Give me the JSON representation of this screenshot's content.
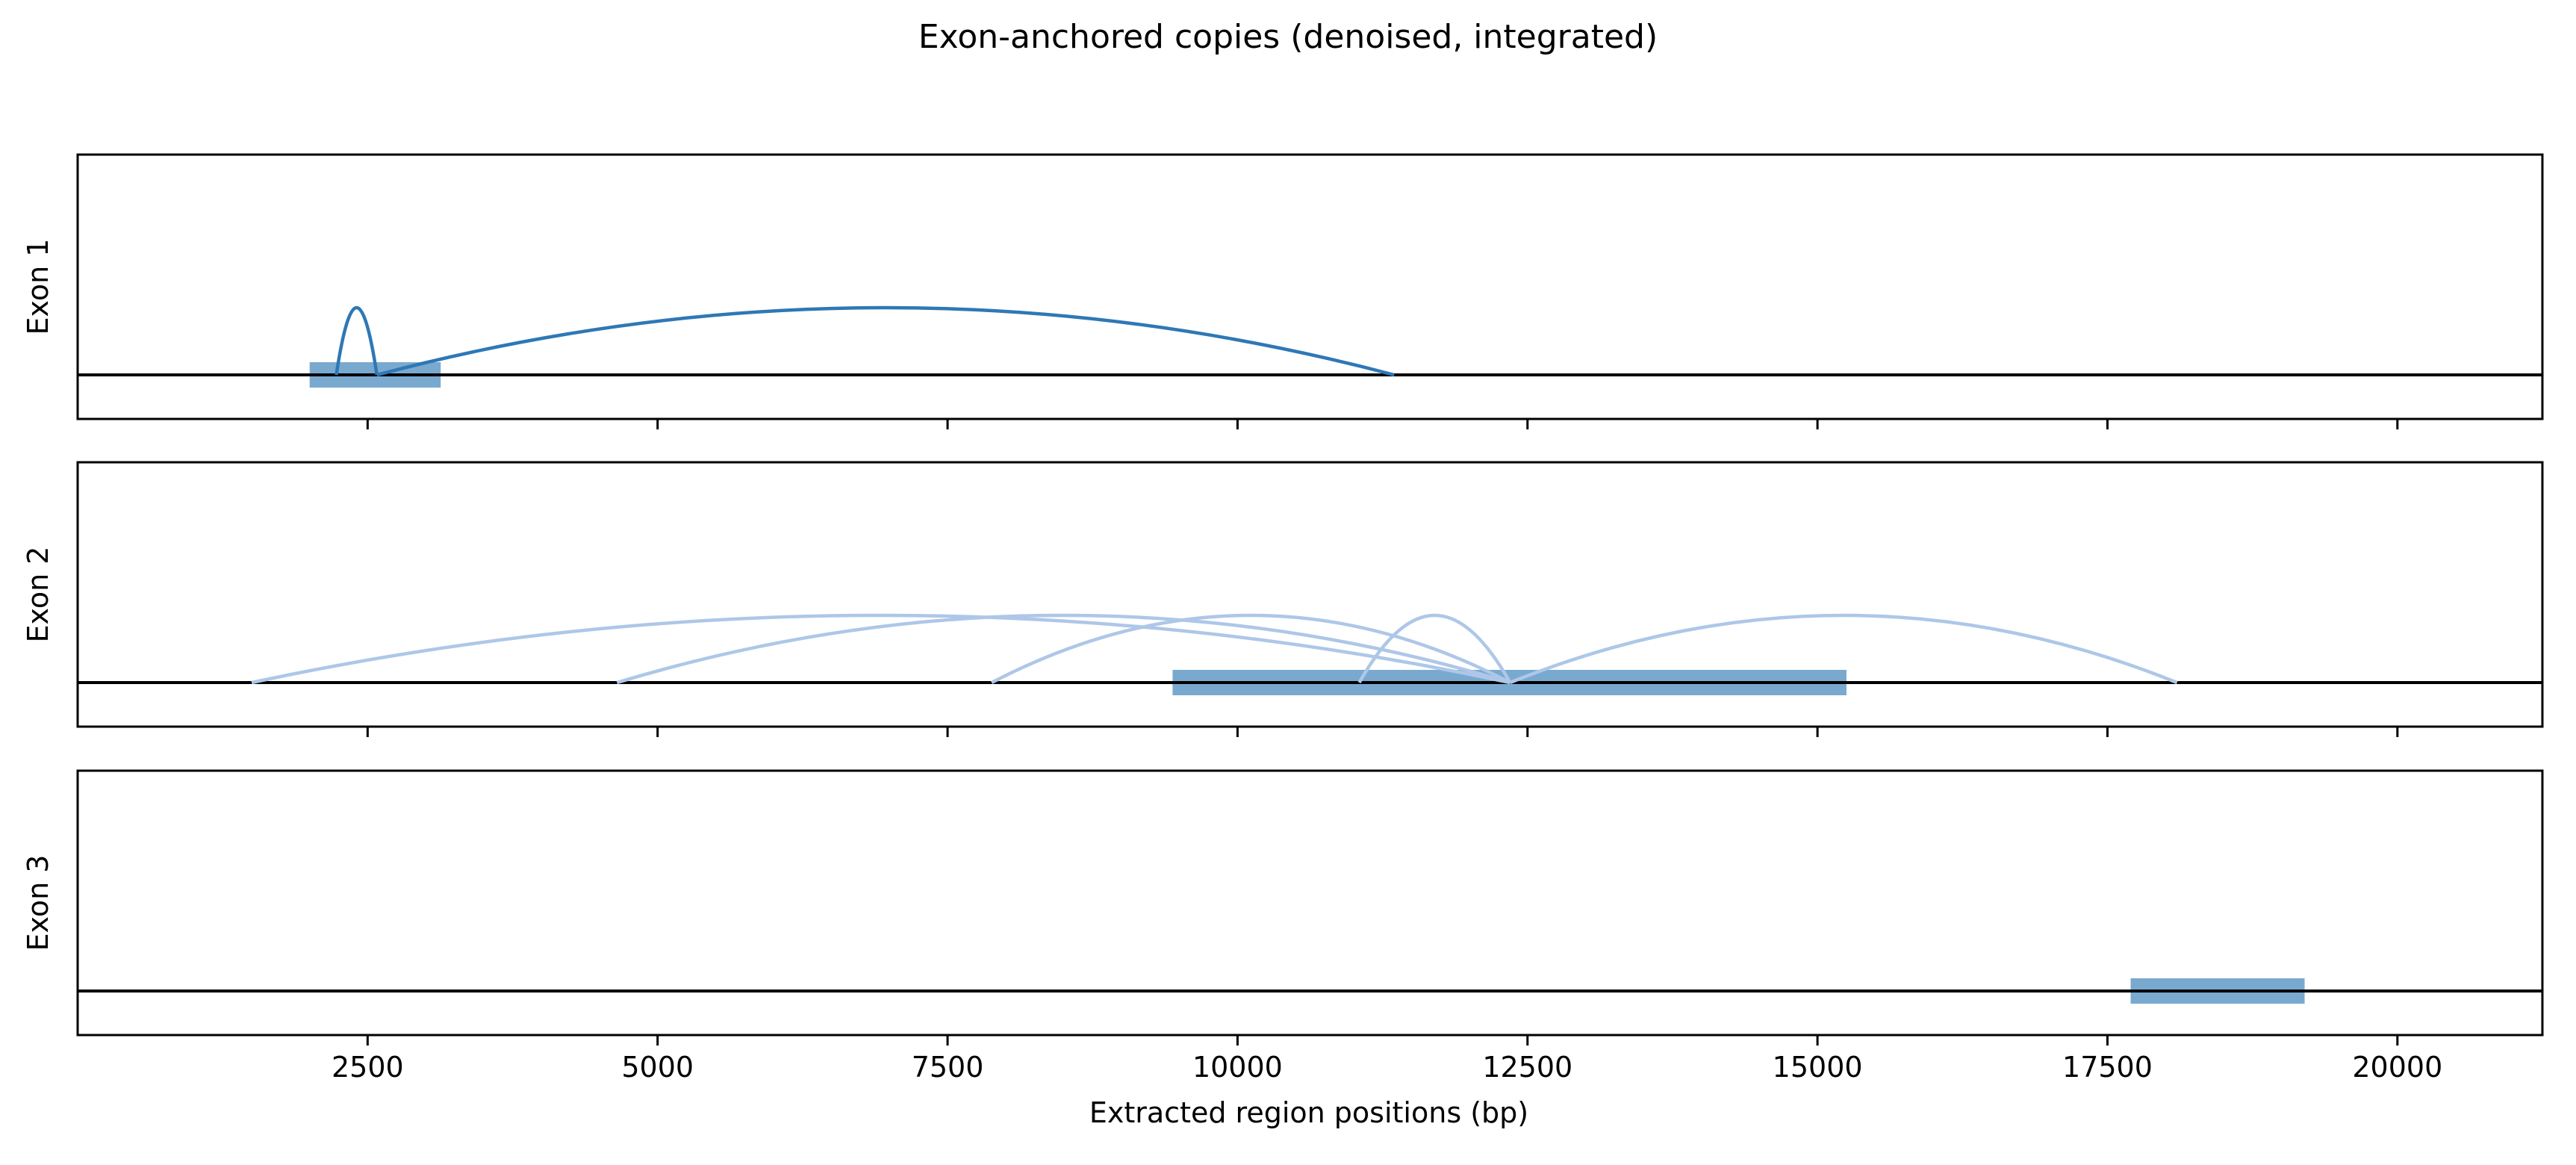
{
  "chart_data": {
    "type": "arc",
    "title": "Exon-anchored copies (denoised, integrated)",
    "xlabel": "Extracted region positions (bp)",
    "xlim": [
      0,
      21250
    ],
    "xticks": [
      2500,
      5000,
      7500,
      10000,
      12500,
      15000,
      17500,
      20000
    ],
    "xtick_labels": [
      "2500",
      "5000",
      "7500",
      "10000",
      "12500",
      "15000",
      "17500",
      "20000"
    ],
    "sharex": true,
    "colors": {
      "exon_bar": "#7aa9d0",
      "arc_exon1": "#2e78b5",
      "arc_exon2": "#aec7e8",
      "baseline": "#000000"
    },
    "panels": [
      {
        "ylabel": "Exon 1",
        "exon_block": [
          2000,
          3130
        ],
        "arcs": [
          {
            "start": 2230,
            "end": 2580,
            "height": 1
          },
          {
            "start": 2580,
            "end": 11350,
            "height": 1
          }
        ]
      },
      {
        "ylabel": "Exon 2",
        "exon_block": [
          9440,
          15250
        ],
        "arcs": [
          {
            "start": 1500,
            "end": 12350,
            "height": 1
          },
          {
            "start": 4650,
            "end": 12350,
            "height": 1
          },
          {
            "start": 7880,
            "end": 12350,
            "height": 1
          },
          {
            "start": 11050,
            "end": 12350,
            "height": 1
          },
          {
            "start": 12350,
            "end": 18100,
            "height": 1
          }
        ]
      },
      {
        "ylabel": "Exon 3",
        "exon_block": [
          17700,
          19200
        ],
        "arcs": []
      }
    ]
  }
}
